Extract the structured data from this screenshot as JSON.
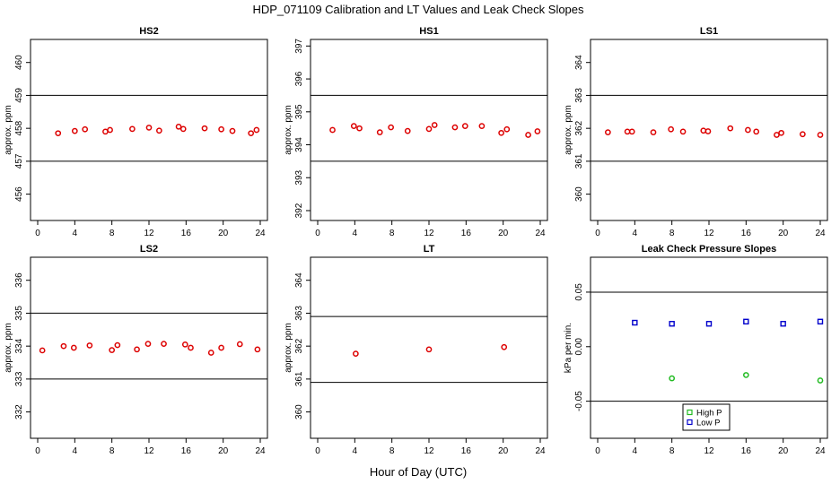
{
  "page": {
    "title": "HDP_071109  Calibration and LT Values and Leak Check Slopes",
    "xlabel": "Hour of Day (UTC)"
  },
  "colors": {
    "axis": "#000000",
    "red_points": "#dd0000",
    "high_p": "#22bb22",
    "low_p": "#0000cc"
  },
  "chart_data": [
    {
      "type": "scatter",
      "title": "HS2",
      "ylabel": "approx. ppm",
      "xlim": [
        0,
        24
      ],
      "ylim": [
        455.2,
        460.7
      ],
      "x_ticks": [
        0,
        4,
        8,
        12,
        16,
        20,
        24
      ],
      "y_ticks": [
        456,
        457,
        458,
        459,
        460
      ],
      "hlines": [
        459,
        457
      ],
      "series": [
        {
          "x": [
            2.2,
            4.0,
            5.1,
            7.3,
            7.8,
            10.2,
            12.0,
            13.1,
            15.2,
            15.7,
            18.0,
            19.8,
            21.0,
            23.0,
            23.6
          ],
          "y": [
            457.85,
            457.92,
            457.97,
            457.9,
            457.95,
            457.98,
            458.02,
            457.93,
            458.05,
            457.98,
            458.0,
            457.97,
            457.92,
            457.85,
            457.95
          ],
          "marker": "circle",
          "color": "#dd0000"
        }
      ]
    },
    {
      "type": "scatter",
      "title": "HS1",
      "ylabel": "approx. ppm",
      "xlim": [
        0,
        24
      ],
      "ylim": [
        391.7,
        397.2
      ],
      "x_ticks": [
        0,
        4,
        8,
        12,
        16,
        20,
        24
      ],
      "y_ticks": [
        392,
        393,
        394,
        395,
        396,
        397
      ],
      "hlines": [
        395.5,
        393.5
      ],
      "series": [
        {
          "x": [
            1.6,
            3.9,
            4.5,
            6.7,
            7.9,
            9.7,
            12.0,
            12.6,
            14.8,
            15.9,
            17.7,
            19.8,
            20.4,
            22.7,
            23.7
          ],
          "y": [
            394.45,
            394.57,
            394.5,
            394.38,
            394.53,
            394.42,
            394.48,
            394.6,
            394.53,
            394.57,
            394.57,
            394.36,
            394.47,
            394.3,
            394.41
          ],
          "marker": "circle",
          "color": "#dd0000"
        }
      ]
    },
    {
      "type": "scatter",
      "title": "LS1",
      "ylabel": "approx. ppm",
      "xlim": [
        0,
        24
      ],
      "ylim": [
        359.2,
        364.7
      ],
      "x_ticks": [
        0,
        4,
        8,
        12,
        16,
        20,
        24
      ],
      "y_ticks": [
        360,
        361,
        362,
        363,
        364
      ],
      "hlines": [
        363,
        361
      ],
      "series": [
        {
          "x": [
            1.1,
            3.2,
            3.7,
            6.0,
            7.9,
            9.2,
            11.4,
            11.9,
            14.3,
            16.2,
            17.1,
            19.3,
            19.8,
            22.1,
            24.0
          ],
          "y": [
            361.88,
            361.9,
            361.9,
            361.88,
            361.97,
            361.9,
            361.93,
            361.91,
            362.0,
            361.95,
            361.9,
            361.8,
            361.86,
            361.82,
            361.8
          ],
          "marker": "circle",
          "color": "#dd0000"
        }
      ]
    },
    {
      "type": "scatter",
      "title": "LS2",
      "ylabel": "approx. ppm",
      "xlim": [
        0,
        24
      ],
      "ylim": [
        331.2,
        336.7
      ],
      "x_ticks": [
        0,
        4,
        8,
        12,
        16,
        20,
        24
      ],
      "y_ticks": [
        332,
        333,
        334,
        335,
        336
      ],
      "hlines": [
        335,
        333
      ],
      "series": [
        {
          "x": [
            0.5,
            2.8,
            3.9,
            5.6,
            8.0,
            8.6,
            10.7,
            11.9,
            13.6,
            15.9,
            16.5,
            18.7,
            19.8,
            21.8,
            23.7
          ],
          "y": [
            333.87,
            334.0,
            333.95,
            334.02,
            333.88,
            334.03,
            333.9,
            334.07,
            334.07,
            334.05,
            333.95,
            333.8,
            333.95,
            334.06,
            333.9
          ]
        }
      ]
    },
    {
      "type": "scatter",
      "title": "LT",
      "ylabel": "approx. ppm",
      "xlim": [
        0,
        24
      ],
      "ylim": [
        359.2,
        364.7
      ],
      "x_ticks": [
        0,
        4,
        8,
        12,
        16,
        20,
        24
      ],
      "y_ticks": [
        360,
        361,
        362,
        363,
        364
      ],
      "hlines": [
        362.9,
        360.9
      ],
      "series": [
        {
          "x": [
            4.1,
            12.0,
            20.1
          ],
          "y": [
            361.77,
            361.9,
            361.97
          ]
        }
      ]
    },
    {
      "type": "scatter",
      "title": "Leak Check Pressure Slopes",
      "ylabel": "kPa per min.",
      "xlim": [
        0,
        24
      ],
      "ylim": [
        -0.084,
        0.082
      ],
      "x_ticks": [
        0,
        4,
        8,
        12,
        16,
        20,
        24
      ],
      "y_ticks": [
        -0.05,
        0.0,
        0.05
      ],
      "y_tick_labels": [
        "-0.05",
        "0.00",
        "0.05"
      ],
      "hlines": [
        0.05,
        -0.05
      ],
      "legend": {
        "placement": "bottom-center",
        "entries": [
          "High P",
          "Low P"
        ]
      },
      "series": [
        {
          "name": "High P",
          "x": [
            8.0,
            16.0,
            24.0
          ],
          "y": [
            -0.029,
            -0.026,
            -0.031
          ],
          "marker": "circle",
          "color": "#22bb22"
        },
        {
          "name": "Low P",
          "x": [
            4.0,
            8.0,
            12.0,
            16.0,
            20.0,
            24.0
          ],
          "y": [
            0.022,
            0.021,
            0.021,
            0.023,
            0.021,
            0.023
          ],
          "marker": "square",
          "color": "#0000cc"
        }
      ]
    }
  ]
}
